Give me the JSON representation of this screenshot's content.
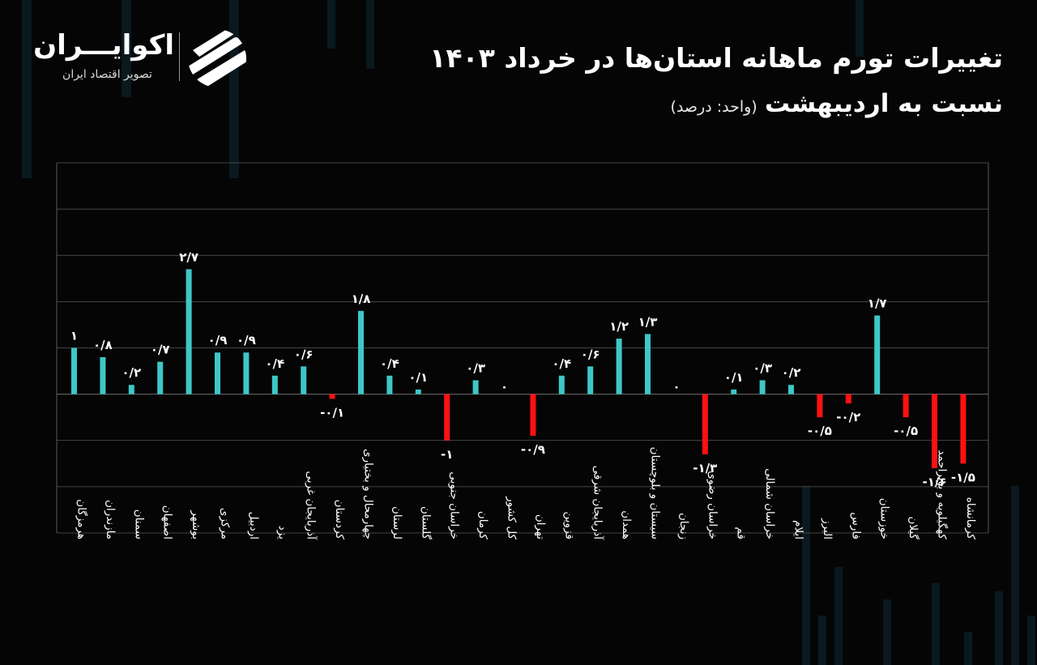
{
  "title": {
    "line1": "تغییرات تورم ماهانه استان‌ها در خرداد ۱۴۰۳",
    "line2": "نسبت به اردیبهشت",
    "unit": "(واحد: درصد)"
  },
  "brand": {
    "name": "اکوایـــران",
    "subtitle": "تصویر اقتصاد ایران"
  },
  "colors": {
    "positive": "#3ec7c7",
    "negative": "#ff1111",
    "grid": "#5a5a5a",
    "background": "#050506"
  },
  "chart_data": {
    "type": "bar",
    "ylim": [
      -3,
      5
    ],
    "grid": true,
    "categories": [
      "هرمزگان",
      "مازندران",
      "سمنان",
      "اصفهان",
      "بوشهر",
      "مرکزی",
      "اردبیل",
      "یزد",
      "آذربایجان غربی",
      "کردستان",
      "چهارمحال و بختیاری",
      "لرستان",
      "گلستان",
      "خراسان جنوبی",
      "کرمان",
      "کل کشور",
      "تهران",
      "قزوین",
      "آذربایجان شرقی",
      "همدان",
      "سیستان و بلوچستان",
      "زنجان",
      "خراسان رضوی",
      "قم",
      "خراسان شمالی",
      "ایلام",
      "البرز",
      "فارس",
      "خوزستان",
      "گیلان",
      "کهگیلویه و بویراحمد",
      "کرمانشاه"
    ],
    "values": [
      1,
      0.8,
      0.2,
      0.7,
      2.7,
      0.9,
      0.9,
      0.4,
      0.6,
      -0.1,
      1.8,
      0.4,
      0.1,
      -1,
      0.3,
      0,
      -0.9,
      0.4,
      0.6,
      1.2,
      1.3,
      0,
      -1.3,
      0.1,
      0.3,
      0.2,
      -0.5,
      -0.2,
      1.7,
      -0.5,
      -1.6,
      -1.5
    ],
    "labels": [
      "۱",
      "۰/۸",
      "۰/۲",
      "۰/۷",
      "۲/۷",
      "۰/۹",
      "۰/۹",
      "۰/۴",
      "۰/۶",
      "-۰/۱",
      "۱/۸",
      "۰/۴",
      "۰/۱",
      "-۱",
      "۰/۳",
      "۰",
      "-۰/۹",
      "۰/۴",
      "۰/۶",
      "۱/۲",
      "۱/۳",
      "۰",
      "-۱/۳",
      "۰/۱",
      "۰/۳",
      "۰/۲",
      "-۰/۵",
      "-۰/۲",
      "۱/۷",
      "-۰/۵",
      "-۱/۶",
      "-۱/۵"
    ]
  }
}
